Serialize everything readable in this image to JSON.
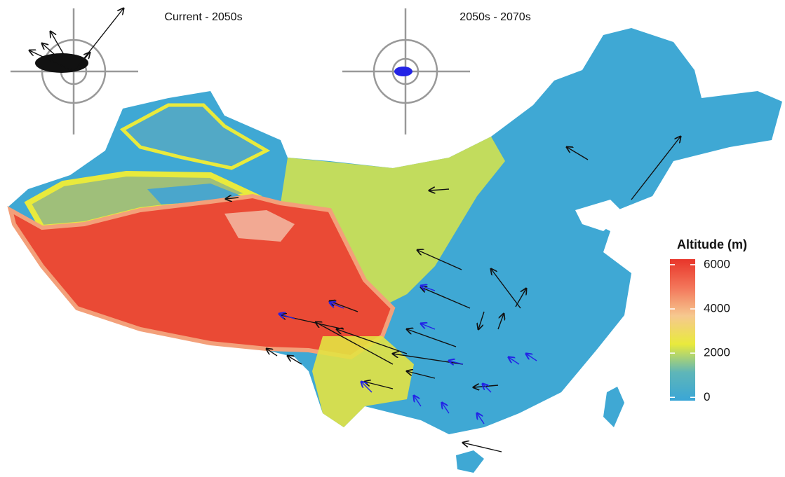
{
  "panels": [
    {
      "title": "Current - 2050s"
    },
    {
      "title": "2050s - 2070s"
    }
  ],
  "legend": {
    "title": "Altitude (m)",
    "range": [
      -150,
      6250
    ],
    "ticks": [
      0,
      2000,
      4000,
      6000
    ],
    "colors": [
      "#3aa6d6",
      "#5fb6b8",
      "#e9ea3c",
      "#f6c88f",
      "#f3765a",
      "#e8352a"
    ]
  }
}
